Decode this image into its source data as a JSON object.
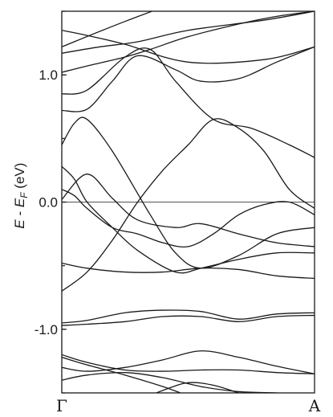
{
  "chart_data": {
    "type": "line",
    "ylabel_parts": {
      "e": "E",
      "minus": " - ",
      "ef": "E",
      "sub": "F",
      "unit": "(eV)"
    },
    "xticks": [
      "Γ",
      "A"
    ],
    "yticks": [
      {
        "value": 1.0,
        "label": "1.0"
      },
      {
        "value": 0.0,
        "label": "0.0"
      },
      {
        "value": -1.0,
        "label": "-1.0"
      }
    ],
    "ylim": [
      -1.5,
      1.5
    ],
    "xlim": [
      0,
      1
    ],
    "reference_line": {
      "y": 0.0
    },
    "grid": false,
    "series": [
      {
        "values": [
          [
            0,
            1.22
          ],
          [
            0.25,
            1.42
          ],
          [
            0.5,
            1.6
          ],
          [
            0.75,
            1.75
          ],
          [
            1,
            1.82
          ]
        ]
      },
      {
        "values": [
          [
            0,
            1.35
          ],
          [
            0.1,
            1.31
          ],
          [
            0.25,
            1.24
          ],
          [
            0.5,
            1.1
          ],
          [
            0.8,
            1.12
          ],
          [
            1,
            1.22
          ]
        ]
      },
      {
        "values": [
          [
            0,
            1.17
          ],
          [
            0.15,
            1.22
          ],
          [
            0.3,
            1.26
          ],
          [
            0.5,
            1.35
          ],
          [
            0.8,
            1.43
          ],
          [
            1,
            1.5
          ]
        ]
      },
      {
        "values": [
          [
            0,
            1.02
          ],
          [
            0.1,
            1.07
          ],
          [
            0.25,
            1.14
          ],
          [
            0.35,
            1.2
          ],
          [
            0.5,
            1.3
          ],
          [
            0.7,
            1.4
          ],
          [
            0.85,
            1.46
          ],
          [
            1,
            1.5
          ]
        ]
      },
      {
        "values": [
          [
            0,
            0.72
          ],
          [
            0.1,
            0.73
          ],
          [
            0.2,
            0.95
          ],
          [
            0.3,
            1.15
          ],
          [
            0.45,
            1.04
          ],
          [
            0.55,
            0.95
          ],
          [
            0.7,
            0.97
          ],
          [
            0.85,
            1.1
          ],
          [
            1,
            1.22
          ]
        ]
      },
      {
        "values": [
          [
            0,
            0.85
          ],
          [
            0.1,
            0.88
          ],
          [
            0.25,
            1.14
          ],
          [
            0.35,
            1.2
          ],
          [
            0.45,
            0.95
          ],
          [
            0.6,
            0.65
          ],
          [
            0.75,
            0.58
          ],
          [
            0.9,
            0.45
          ],
          [
            1,
            0.35
          ]
        ]
      },
      {
        "values": [
          [
            0,
            0.45
          ],
          [
            0.05,
            0.62
          ],
          [
            0.1,
            0.65
          ],
          [
            0.2,
            0.4
          ],
          [
            0.35,
            -0.1
          ],
          [
            0.45,
            -0.4
          ],
          [
            0.55,
            -0.52
          ],
          [
            0.7,
            -0.42
          ],
          [
            0.85,
            -0.25
          ],
          [
            1,
            -0.2
          ]
        ]
      },
      {
        "values": [
          [
            0,
            0.02
          ],
          [
            0.1,
            0.22
          ],
          [
            0.2,
            0.03
          ],
          [
            0.3,
            -0.14
          ],
          [
            0.45,
            -0.2
          ],
          [
            0.55,
            -0.17
          ],
          [
            0.7,
            -0.25
          ],
          [
            0.85,
            -0.32
          ],
          [
            1,
            -0.35
          ]
        ]
      },
      {
        "values": [
          [
            0,
            0.28
          ],
          [
            0.05,
            0.18
          ],
          [
            0.1,
            0.0
          ],
          [
            0.2,
            -0.2
          ],
          [
            0.3,
            -0.38
          ],
          [
            0.45,
            -0.55
          ],
          [
            0.55,
            -0.52
          ],
          [
            0.7,
            -0.45
          ],
          [
            0.85,
            -0.4
          ],
          [
            1,
            -0.4
          ]
        ]
      },
      {
        "values": [
          [
            0,
            -0.48
          ],
          [
            0.1,
            -0.52
          ],
          [
            0.25,
            -0.55
          ],
          [
            0.4,
            -0.55
          ],
          [
            0.55,
            -0.52
          ],
          [
            0.7,
            -0.53
          ],
          [
            0.85,
            -0.58
          ],
          [
            1,
            -0.6
          ]
        ]
      },
      {
        "values": [
          [
            0,
            -0.7
          ],
          [
            0.1,
            -0.55
          ],
          [
            0.2,
            -0.3
          ],
          [
            0.3,
            0.0
          ],
          [
            0.4,
            0.25
          ],
          [
            0.5,
            0.45
          ],
          [
            0.6,
            0.65
          ],
          [
            0.7,
            0.58
          ],
          [
            0.8,
            0.4
          ],
          [
            0.9,
            0.1
          ],
          [
            1,
            -0.05
          ]
        ]
      },
      {
        "values": [
          [
            0,
            0.1
          ],
          [
            0.05,
            0.05
          ],
          [
            0.1,
            -0.05
          ],
          [
            0.2,
            -0.2
          ],
          [
            0.3,
            -0.25
          ],
          [
            0.4,
            -0.32
          ],
          [
            0.5,
            -0.35
          ],
          [
            0.6,
            -0.25
          ],
          [
            0.7,
            -0.1
          ],
          [
            0.8,
            -0.02
          ],
          [
            0.9,
            0.0
          ],
          [
            1,
            -0.1
          ]
        ]
      },
      {
        "values": [
          [
            0,
            -0.95
          ],
          [
            0.1,
            -0.93
          ],
          [
            0.25,
            -0.87
          ],
          [
            0.4,
            -0.85
          ],
          [
            0.55,
            -0.86
          ],
          [
            0.7,
            -0.92
          ],
          [
            0.85,
            -0.88
          ],
          [
            1,
            -0.87
          ]
        ]
      },
      {
        "values": [
          [
            0,
            -0.97
          ],
          [
            0.1,
            -0.96
          ],
          [
            0.25,
            -0.94
          ],
          [
            0.4,
            -0.9
          ],
          [
            0.55,
            -0.9
          ],
          [
            0.7,
            -0.94
          ],
          [
            0.85,
            -0.9
          ],
          [
            1,
            -0.89
          ]
        ]
      },
      {
        "values": [
          [
            0,
            -1.2
          ],
          [
            0.1,
            -1.26
          ],
          [
            0.25,
            -1.32
          ],
          [
            0.4,
            -1.33
          ],
          [
            0.55,
            -1.32
          ],
          [
            0.7,
            -1.32
          ],
          [
            0.85,
            -1.34
          ],
          [
            1,
            -1.35
          ]
        ]
      },
      {
        "values": [
          [
            0,
            -1.3
          ],
          [
            0.1,
            -1.33
          ],
          [
            0.25,
            -1.3
          ],
          [
            0.4,
            -1.24
          ],
          [
            0.55,
            -1.17
          ],
          [
            0.7,
            -1.22
          ],
          [
            0.85,
            -1.29
          ],
          [
            1,
            -1.35
          ]
        ]
      },
      {
        "values": [
          [
            0,
            -1.4
          ],
          [
            0.1,
            -1.36
          ],
          [
            0.25,
            -1.34
          ],
          [
            0.4,
            -1.38
          ],
          [
            0.55,
            -1.45
          ],
          [
            0.7,
            -1.49
          ],
          [
            0.85,
            -1.5
          ],
          [
            1,
            -1.52
          ]
        ]
      },
      {
        "values": [
          [
            0,
            -1.22
          ],
          [
            0.1,
            -1.28
          ],
          [
            0.25,
            -1.36
          ],
          [
            0.4,
            -1.45
          ],
          [
            0.5,
            -1.52
          ],
          [
            0.6,
            -1.56
          ],
          [
            0.7,
            -1.6
          ]
        ]
      },
      {
        "values": [
          [
            0.2,
            -1.62
          ],
          [
            0.3,
            -1.56
          ],
          [
            0.4,
            -1.48
          ],
          [
            0.5,
            -1.42
          ],
          [
            0.6,
            -1.44
          ],
          [
            0.7,
            -1.5
          ],
          [
            0.8,
            -1.56
          ],
          [
            0.9,
            -1.6
          ]
        ]
      },
      {
        "values": [
          [
            0.3,
            -1.62
          ],
          [
            0.42,
            -1.56
          ],
          [
            0.5,
            -1.54
          ],
          [
            0.6,
            -1.56
          ],
          [
            0.7,
            -1.6
          ]
        ]
      }
    ]
  }
}
